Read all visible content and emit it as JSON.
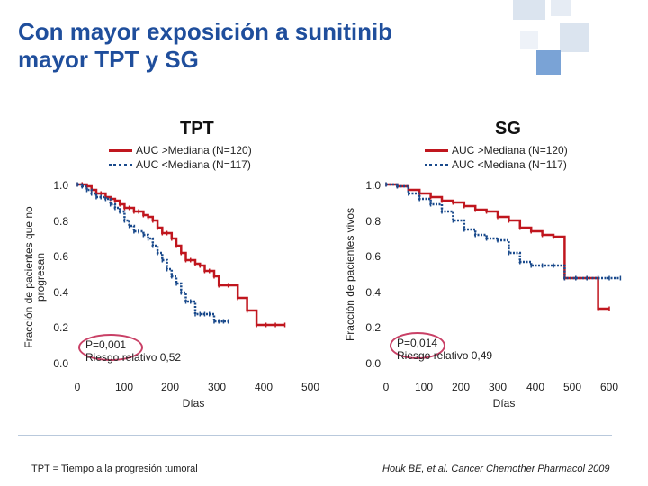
{
  "slide": {
    "title_line1": "Con mayor exposición a sunitinib",
    "title_line2": "mayor TPT y SG",
    "footnote_left": "TPT = Tiempo a la progresión tumoral",
    "footnote_right": "Houk BE, et al. Cancer Chemother Pharmacol 2009"
  },
  "colors": {
    "above_median": "#c0161e",
    "below_median": "#1a4a8c",
    "title": "#1f4e9c",
    "highlight_circle": "#c94066"
  },
  "chart_data": [
    {
      "type": "line",
      "subtype": "kaplan-meier",
      "title": "TPT",
      "ylabel_line1": "Fracción de pacientes que no",
      "ylabel_line2": "progresan",
      "xlabel": "Días",
      "xlim": [
        0,
        500
      ],
      "ylim": [
        0,
        1
      ],
      "xticks": [
        "0",
        "100",
        "200",
        "300",
        "400",
        "500"
      ],
      "yticks": [
        "0.0",
        "0.2",
        "0.4",
        "0.6",
        "0.8",
        "1.0"
      ],
      "legend": {
        "placement": "top-right",
        "entries": [
          "AUC >Mediana (N=120)",
          "AUC <Mediana (N=117)"
        ]
      },
      "annotation_p": "P=0,001",
      "annotation_hr": "Riesgo relativo 0,52",
      "series": [
        {
          "name": "AUC >Mediana (N=120)",
          "style": "solid",
          "color": "#c0161e",
          "x": [
            0,
            10,
            20,
            30,
            40,
            50,
            60,
            70,
            80,
            90,
            100,
            110,
            120,
            130,
            140,
            150,
            160,
            170,
            180,
            190,
            200,
            210,
            220,
            230,
            240,
            250,
            260,
            270,
            280,
            290,
            300,
            320,
            340,
            360,
            380,
            400,
            420,
            440
          ],
          "y": [
            1.0,
            1.0,
            0.99,
            0.97,
            0.95,
            0.95,
            0.93,
            0.92,
            0.91,
            0.89,
            0.87,
            0.87,
            0.85,
            0.85,
            0.83,
            0.82,
            0.8,
            0.76,
            0.73,
            0.73,
            0.7,
            0.66,
            0.62,
            0.58,
            0.58,
            0.56,
            0.55,
            0.52,
            0.52,
            0.49,
            0.44,
            0.44,
            0.37,
            0.3,
            0.22,
            0.22,
            0.22,
            0.22
          ]
        },
        {
          "name": "AUC <Mediana (N=117)",
          "style": "dotted",
          "color": "#1a4a8c",
          "x": [
            0,
            10,
            20,
            30,
            40,
            50,
            60,
            70,
            80,
            90,
            100,
            110,
            120,
            130,
            140,
            150,
            160,
            170,
            180,
            190,
            200,
            210,
            220,
            230,
            240,
            250,
            260,
            270,
            280,
            290,
            300,
            310,
            320
          ],
          "y": [
            1.0,
            0.99,
            0.97,
            0.95,
            0.93,
            0.93,
            0.92,
            0.89,
            0.87,
            0.85,
            0.8,
            0.77,
            0.74,
            0.74,
            0.72,
            0.7,
            0.66,
            0.62,
            0.58,
            0.53,
            0.49,
            0.45,
            0.4,
            0.35,
            0.35,
            0.28,
            0.28,
            0.28,
            0.28,
            0.24,
            0.24,
            0.24,
            0.24
          ]
        }
      ]
    },
    {
      "type": "line",
      "subtype": "kaplan-meier",
      "title": "SG",
      "ylabel": "Fracción de pacientes vivos",
      "xlabel": "Días",
      "xlim": [
        0,
        600
      ],
      "ylim": [
        0,
        1
      ],
      "xticks": [
        "0",
        "100",
        "200",
        "300",
        "400",
        "500",
        "600"
      ],
      "yticks": [
        "0.0",
        "0.2",
        "0.4",
        "0.6",
        "0.8",
        "1.0"
      ],
      "legend": {
        "placement": "top-right",
        "entries": [
          "AUC >Mediana (N=120)",
          "AUC <Mediana (N=117)"
        ]
      },
      "annotation_p": "P=0,014",
      "annotation_hr": "Riesgo relativo 0,49",
      "series": [
        {
          "name": "AUC >Mediana (N=120)",
          "style": "solid",
          "color": "#c0161e",
          "x": [
            0,
            30,
            60,
            90,
            120,
            150,
            180,
            210,
            240,
            270,
            300,
            330,
            360,
            390,
            420,
            450,
            480,
            510,
            540,
            570,
            600
          ],
          "y": [
            1.0,
            0.99,
            0.97,
            0.95,
            0.93,
            0.91,
            0.9,
            0.88,
            0.86,
            0.85,
            0.82,
            0.8,
            0.76,
            0.74,
            0.72,
            0.71,
            0.48,
            0.48,
            0.48,
            0.31,
            0.31
          ]
        },
        {
          "name": "AUC <Mediana (N=117)",
          "style": "dotted",
          "color": "#1a4a8c",
          "x": [
            0,
            30,
            60,
            90,
            120,
            150,
            180,
            210,
            240,
            270,
            300,
            330,
            360,
            390,
            420,
            450,
            480,
            510,
            540,
            570,
            600,
            630
          ],
          "y": [
            1.0,
            0.99,
            0.95,
            0.92,
            0.89,
            0.85,
            0.8,
            0.75,
            0.72,
            0.7,
            0.69,
            0.62,
            0.57,
            0.55,
            0.55,
            0.55,
            0.48,
            0.48,
            0.48,
            0.48,
            0.48,
            0.48
          ]
        }
      ]
    }
  ]
}
